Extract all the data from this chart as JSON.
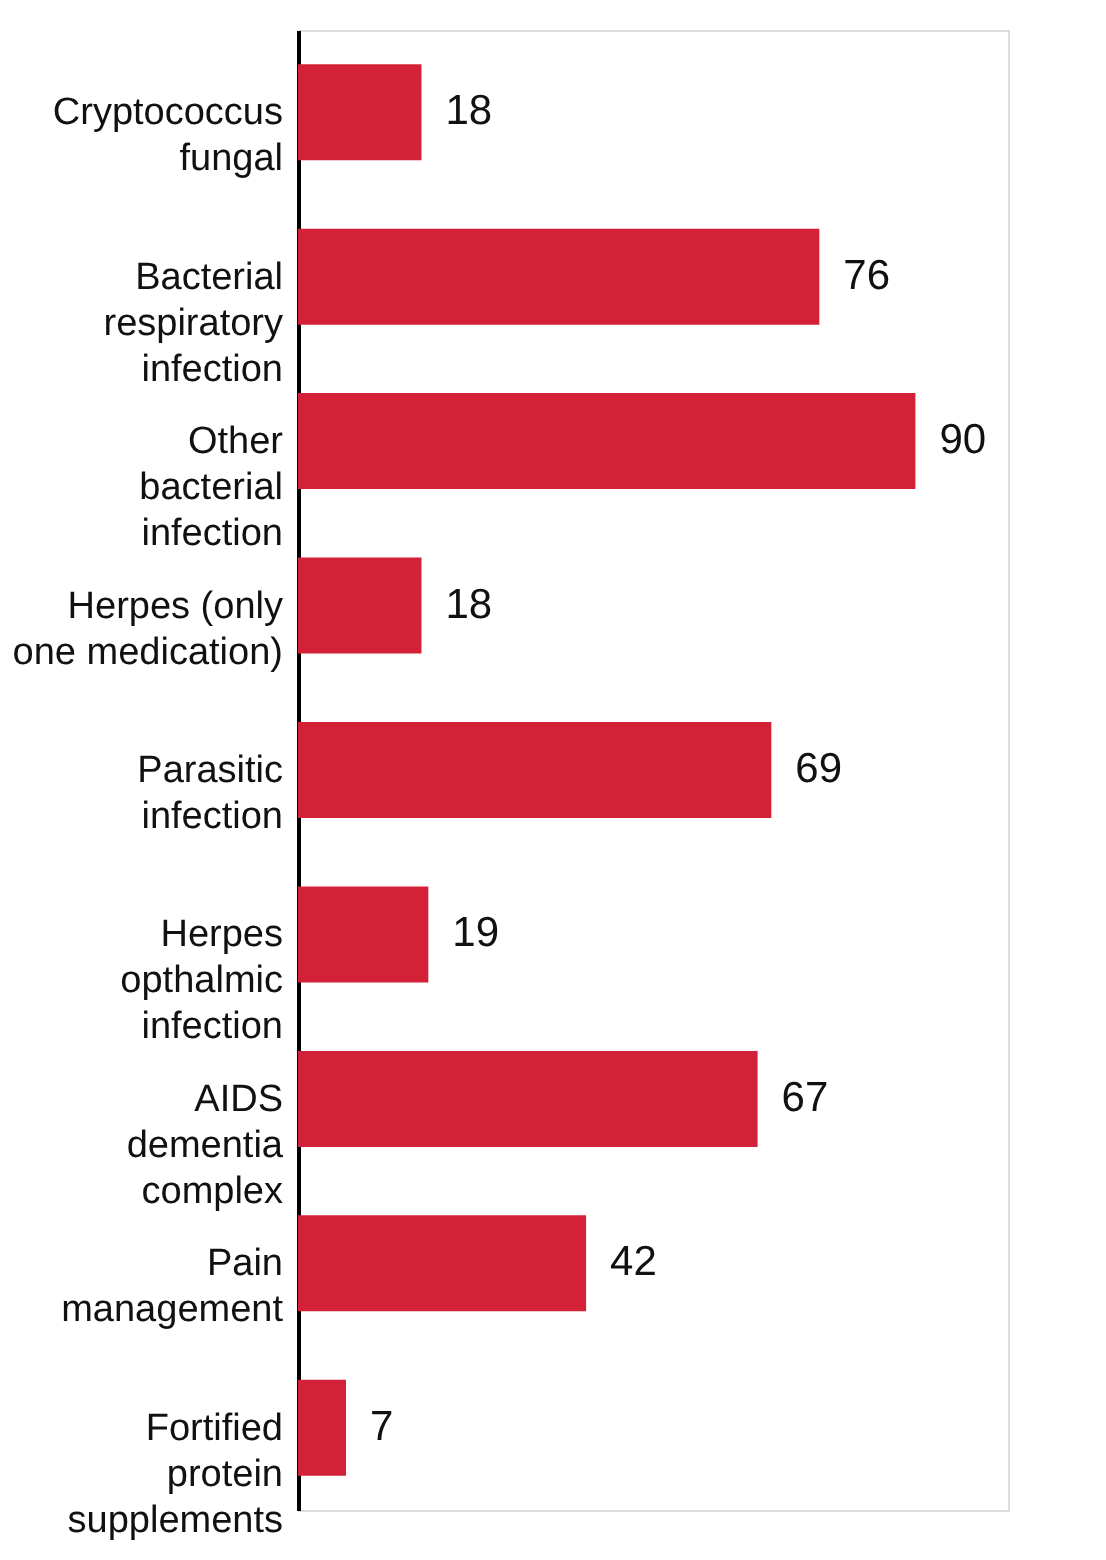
{
  "chart_data": {
    "type": "bar",
    "orientation": "horizontal",
    "data_labels": true,
    "categories": [
      "Cryptococcus\nfungal",
      "Bacterial\nrespiratory\ninfection",
      "Other\nbacterial\ninfection",
      "Herpes (only\none medication)",
      "Parasitic\ninfection",
      "Herpes\nopthalmic\ninfection",
      "AIDS\ndementia\ncomplex",
      "Pain\nmanagement",
      "Fortified\nprotein\nsupplements"
    ],
    "values": [
      18,
      76,
      90,
      18,
      69,
      19,
      67,
      42,
      7
    ],
    "color": "#d32238"
  }
}
